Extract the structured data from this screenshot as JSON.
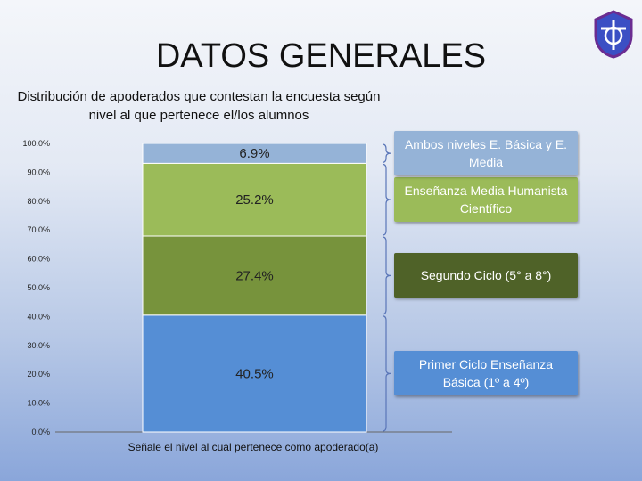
{
  "page_title": "DATOS GENERALES",
  "colors": {
    "seg1": "#558ed5",
    "seg2": "#77933c",
    "seg3": "#9bbb59",
    "seg4": "#95b3d7",
    "box_green": "#4f6228",
    "logo_blue": "#3b4fc4",
    "logo_purple": "#6a2c91"
  },
  "legend": [
    {
      "label": "Ambos niveles E. Básica y E. Media"
    },
    {
      "label": "Enseñanza Media Humanista Científico"
    },
    {
      "label": "Segundo Ciclo (5° a 8°)"
    },
    {
      "label": "Primer Ciclo Enseñanza Básica (1º a 4º)"
    }
  ],
  "chart_data": {
    "type": "bar",
    "stacked": true,
    "title": "Distribución de apoderados que contestan la encuesta según nivel al que pertenece el/los alumnos",
    "xlabel": "Señale el nivel al cual pertenece como apoderado(a)",
    "ylabel": "",
    "ylim": [
      0,
      100
    ],
    "yticks": [
      "0.0%",
      "10.0%",
      "20.0%",
      "30.0%",
      "40.0%",
      "50.0%",
      "60.0%",
      "70.0%",
      "80.0%",
      "90.0%",
      "100.0%"
    ],
    "categories": [
      ""
    ],
    "series": [
      {
        "name": "Primer Ciclo Enseñanza Básica (1º a 4º)",
        "values": [
          40.5
        ],
        "label": "40.5%"
      },
      {
        "name": "Segundo Ciclo (5° a 8°)",
        "values": [
          27.4
        ],
        "label": "27.4%"
      },
      {
        "name": "Enseñanza Media Humanista Científico",
        "values": [
          25.2
        ],
        "label": "25.2%"
      },
      {
        "name": "Ambos niveles E. Básica y E. Media",
        "values": [
          6.9
        ],
        "label": "6.9%"
      }
    ]
  }
}
